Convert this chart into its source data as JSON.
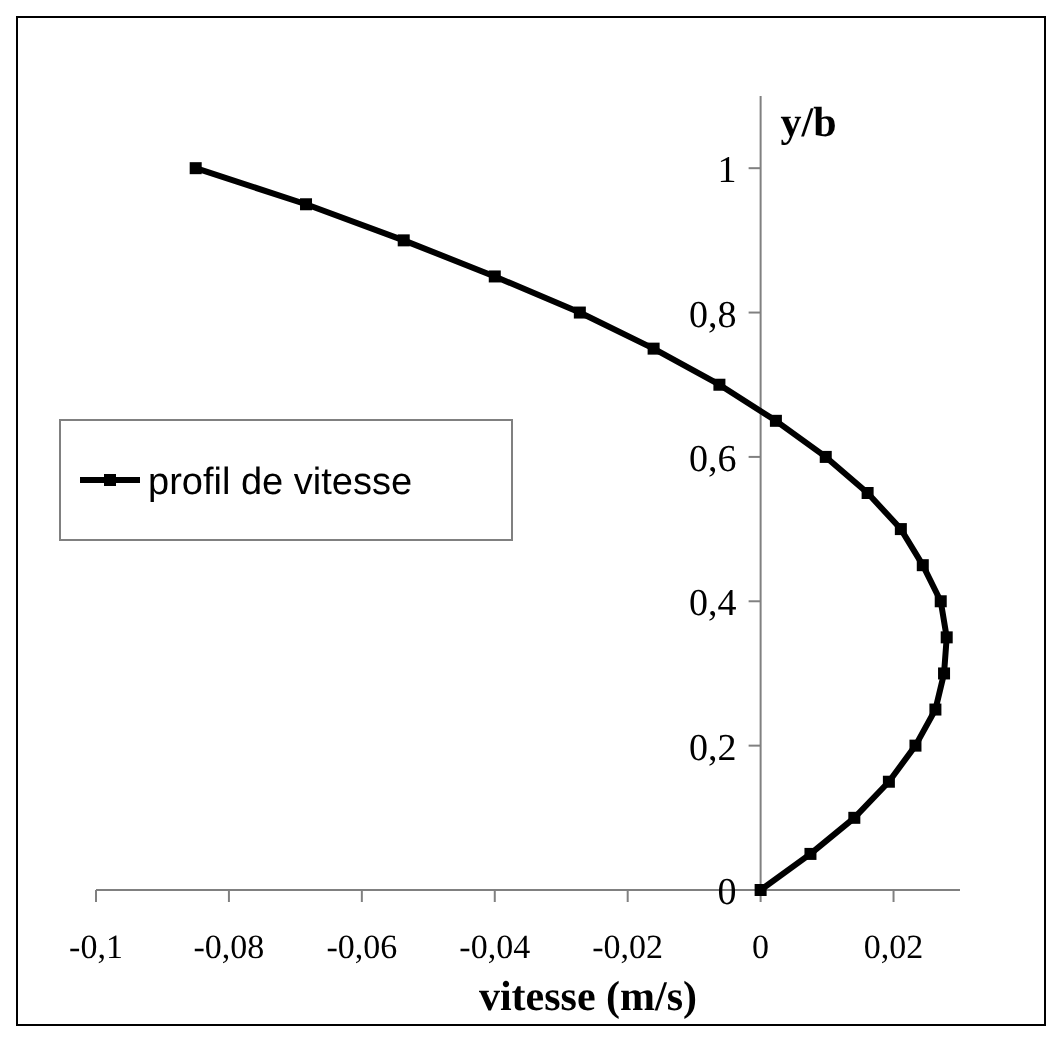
{
  "chart_data": {
    "type": "line",
    "xlabel": "vitesse (m/s)",
    "ylabel": "y/b",
    "xlim": [
      -0.1,
      0.03
    ],
    "ylim": [
      0,
      1.1
    ],
    "xticks": [
      {
        "value": -0.1,
        "label": "-0,1"
      },
      {
        "value": -0.08,
        "label": "-0,08"
      },
      {
        "value": -0.06,
        "label": "-0,06"
      },
      {
        "value": -0.04,
        "label": "-0,04"
      },
      {
        "value": -0.02,
        "label": "-0,02"
      },
      {
        "value": 0,
        "label": "0"
      },
      {
        "value": 0.02,
        "label": "0,02"
      }
    ],
    "yticks": [
      {
        "value": 0,
        "label": "0"
      },
      {
        "value": 0.2,
        "label": "0,2"
      },
      {
        "value": 0.4,
        "label": "0,4"
      },
      {
        "value": 0.6,
        "label": "0,6"
      },
      {
        "value": 0.8,
        "label": "0,8"
      },
      {
        "value": 1,
        "label": "1"
      }
    ],
    "legend": "left",
    "marker": "square",
    "grid": false,
    "series": [
      {
        "name": "profil de vitesse",
        "color": "#000000",
        "x": [
          0,
          0.0075,
          0.0141,
          0.0193,
          0.0233,
          0.0263,
          0.0276,
          0.028,
          0.0271,
          0.0244,
          0.0211,
          0.0161,
          0.0098,
          0.0023,
          -0.0062,
          -0.0161,
          -0.0272,
          -0.04,
          -0.0537,
          -0.0684,
          -0.085
        ],
        "values": [
          0,
          0.05,
          0.1,
          0.15,
          0.2,
          0.25,
          0.3,
          0.35,
          0.4,
          0.45,
          0.5,
          0.55,
          0.6,
          0.65,
          0.7,
          0.75,
          0.8,
          0.85,
          0.9,
          0.95,
          1
        ]
      }
    ]
  }
}
